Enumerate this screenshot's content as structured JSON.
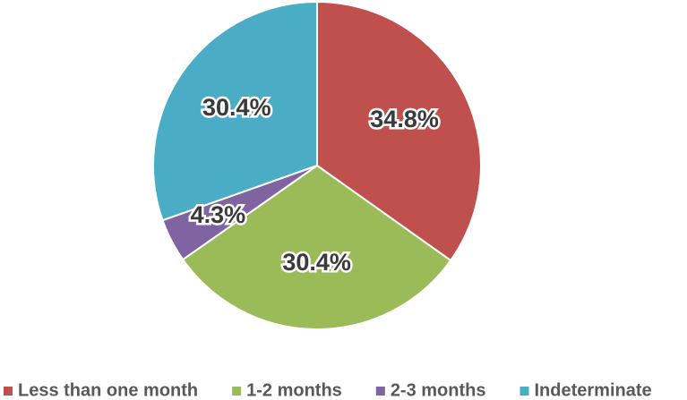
{
  "chart_data": {
    "type": "pie",
    "categories": [
      "Less than one month",
      "1-2 months",
      "2-3 months",
      "Indeterminate"
    ],
    "values": [
      34.8,
      30.4,
      4.3,
      30.4
    ],
    "value_labels": [
      "34.8%",
      "30.4%",
      "4.3%",
      "30.4%"
    ],
    "colors": [
      "#c0504d",
      "#9bbb59",
      "#8064a2",
      "#4bacc6"
    ],
    "legend": "bottom"
  }
}
